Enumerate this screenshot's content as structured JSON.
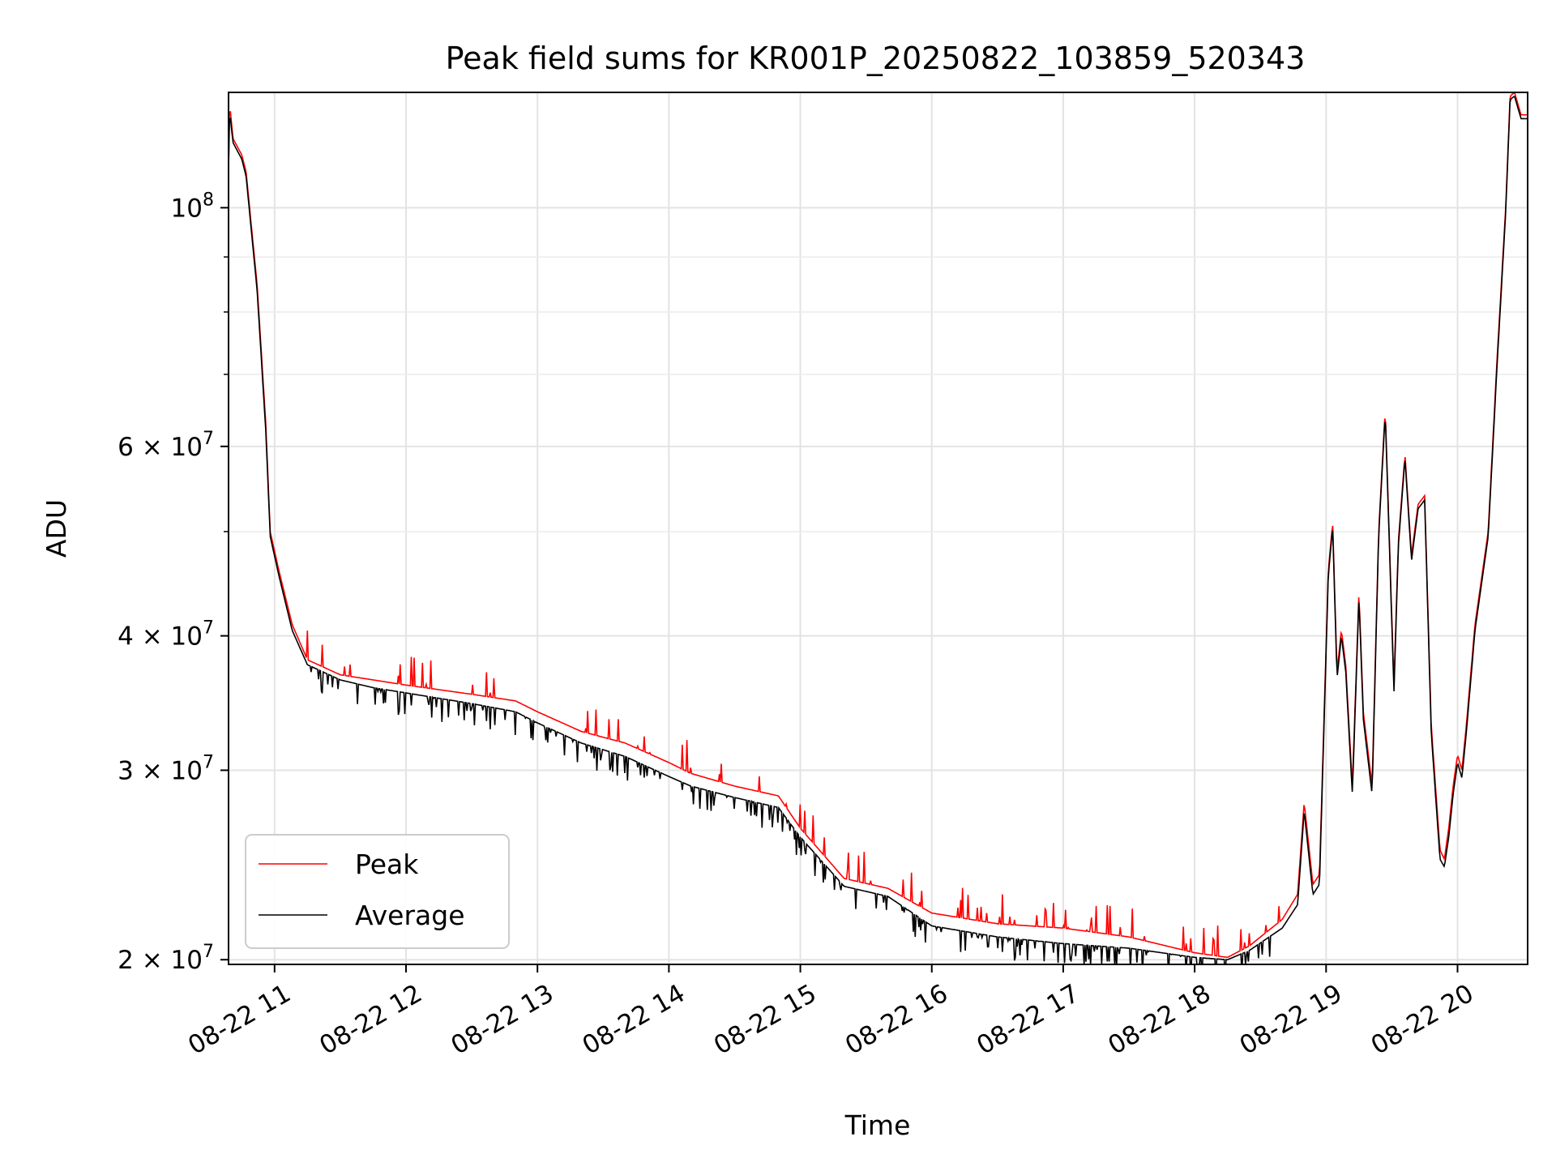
{
  "chart_data": {
    "type": "line",
    "title": "Peak field sums for KR001P_20250822_103859_520343",
    "xlabel": "Time",
    "ylabel": "ADU",
    "yscale": "log",
    "grid": true,
    "legend_position": "lower-left",
    "xlim": [
      "2025-08-22 10:38:59",
      "2025-08-22 20:32:00"
    ],
    "ylim": [
      19800000,
      128000000
    ],
    "x_ticks": [
      {
        "t": "2025-08-22 11:00",
        "label": "08-22 11"
      },
      {
        "t": "2025-08-22 12:00",
        "label": "08-22 12"
      },
      {
        "t": "2025-08-22 13:00",
        "label": "08-22 13"
      },
      {
        "t": "2025-08-22 14:00",
        "label": "08-22 14"
      },
      {
        "t": "2025-08-22 15:00",
        "label": "08-22 15"
      },
      {
        "t": "2025-08-22 16:00",
        "label": "08-22 16"
      },
      {
        "t": "2025-08-22 17:00",
        "label": "08-22 17"
      },
      {
        "t": "2025-08-22 18:00",
        "label": "08-22 18"
      },
      {
        "t": "2025-08-22 19:00",
        "label": "08-22 19"
      },
      {
        "t": "2025-08-22 20:00",
        "label": "08-22 20"
      }
    ],
    "y_major_ticks": [
      {
        "value": 20000000,
        "mantissa": "2",
        "exp": "7"
      },
      {
        "value": 30000000,
        "mantissa": "3",
        "exp": "7"
      },
      {
        "value": 40000000,
        "mantissa": "4",
        "exp": "7"
      },
      {
        "value": 60000000,
        "mantissa": "6",
        "exp": "7"
      },
      {
        "value": 100000000,
        "mantissa": "",
        "exp": "8"
      }
    ],
    "y_minor_ticks": [
      50000000,
      70000000,
      80000000,
      90000000
    ],
    "series": [
      {
        "name": "Peak",
        "color": "#ff0000",
        "x": [
          "2025-08-22 10:38:59",
          "2025-08-22 10:39:30",
          "2025-08-22 10:41:00",
          "2025-08-22 10:45:00",
          "2025-08-22 10:47:00",
          "2025-08-22 10:52:00",
          "2025-08-22 10:56:00",
          "2025-08-22 10:58:00",
          "2025-08-22 11:02:00",
          "2025-08-22 11:08:00",
          "2025-08-22 11:15:00",
          "2025-08-22 11:30:00",
          "2025-08-22 11:45:00",
          "2025-08-22 12:00:00",
          "2025-08-22 12:30:00",
          "2025-08-22 12:50:00",
          "2025-08-22 13:00:00",
          "2025-08-22 13:20:00",
          "2025-08-22 13:40:00",
          "2025-08-22 14:00:00",
          "2025-08-22 14:10:00",
          "2025-08-22 14:30:00",
          "2025-08-22 14:50:00",
          "2025-08-22 15:00:00",
          "2025-08-22 15:20:00",
          "2025-08-22 15:40:00",
          "2025-08-22 16:00:00",
          "2025-08-22 16:30:00",
          "2025-08-22 17:00:00",
          "2025-08-22 17:30:00",
          "2025-08-22 18:00:00",
          "2025-08-22 18:15:00",
          "2025-08-22 18:25:00",
          "2025-08-22 18:40:00",
          "2025-08-22 18:47:00",
          "2025-08-22 18:50:00",
          "2025-08-22 18:54:00",
          "2025-08-22 18:57:00",
          "2025-08-22 19:01:00",
          "2025-08-22 19:03:00",
          "2025-08-22 19:05:00",
          "2025-08-22 19:07:00",
          "2025-08-22 19:09:00",
          "2025-08-22 19:12:00",
          "2025-08-22 19:15:00",
          "2025-08-22 19:17:00",
          "2025-08-22 19:21:00",
          "2025-08-22 19:24:00",
          "2025-08-22 19:27:00",
          "2025-08-22 19:31:00",
          "2025-08-22 19:33:00",
          "2025-08-22 19:36:00",
          "2025-08-22 19:39:00",
          "2025-08-22 19:42:00",
          "2025-08-22 19:45:00",
          "2025-08-22 19:48:00",
          "2025-08-22 19:52:00",
          "2025-08-22 19:54:00",
          "2025-08-22 19:56:00",
          "2025-08-22 19:58:00",
          "2025-08-22 20:00:00",
          "2025-08-22 20:02:00",
          "2025-08-22 20:04:00",
          "2025-08-22 20:08:00",
          "2025-08-22 20:14:00",
          "2025-08-22 20:18:00",
          "2025-08-22 20:22:00",
          "2025-08-22 20:24:00",
          "2025-08-22 20:26:00",
          "2025-08-22 20:29:00",
          "2025-08-22 20:32:00"
        ],
        "y": [
          110000000,
          125000000,
          116000000,
          112000000,
          108000000,
          85000000,
          63000000,
          50000000,
          46000000,
          41000000,
          38000000,
          36800000,
          36400000,
          36000000,
          35300000,
          34800000,
          34000000,
          32600000,
          31800000,
          30500000,
          29800000,
          29000000,
          28400000,
          26500000,
          23800000,
          23300000,
          22100000,
          21600000,
          21400000,
          21000000,
          20300000,
          20100000,
          20600000,
          21800000,
          23000000,
          28000000,
          23500000,
          24000000,
          46000000,
          51000000,
          37000000,
          40500000,
          37500000,
          29000000,
          44000000,
          34000000,
          29000000,
          50000000,
          65000000,
          36000000,
          49000000,
          59000000,
          47500000,
          53000000,
          54000000,
          33000000,
          25300000,
          24800000,
          26500000,
          29000000,
          31000000,
          30000000,
          33000000,
          41000000,
          50000000,
          72000000,
          100000000,
          127000000,
          128000000,
          122000000,
          122000000
        ]
      },
      {
        "name": "Average",
        "color": "#000000",
        "x": [
          "2025-08-22 10:38:59",
          "2025-08-22 10:39:30",
          "2025-08-22 10:41:00",
          "2025-08-22 10:45:00",
          "2025-08-22 10:47:00",
          "2025-08-22 10:52:00",
          "2025-08-22 10:56:00",
          "2025-08-22 10:58:00",
          "2025-08-22 11:02:00",
          "2025-08-22 11:08:00",
          "2025-08-22 11:15:00",
          "2025-08-22 11:30:00",
          "2025-08-22 11:45:00",
          "2025-08-22 12:00:00",
          "2025-08-22 12:30:00",
          "2025-08-22 12:50:00",
          "2025-08-22 13:00:00",
          "2025-08-22 13:20:00",
          "2025-08-22 13:40:00",
          "2025-08-22 14:00:00",
          "2025-08-22 14:10:00",
          "2025-08-22 14:30:00",
          "2025-08-22 14:50:00",
          "2025-08-22 15:00:00",
          "2025-08-22 15:20:00",
          "2025-08-22 15:40:00",
          "2025-08-22 16:00:00",
          "2025-08-22 16:30:00",
          "2025-08-22 17:00:00",
          "2025-08-22 17:30:00",
          "2025-08-22 18:00:00",
          "2025-08-22 18:15:00",
          "2025-08-22 18:25:00",
          "2025-08-22 18:40:00",
          "2025-08-22 18:47:00",
          "2025-08-22 18:50:00",
          "2025-08-22 18:54:00",
          "2025-08-22 18:57:00",
          "2025-08-22 19:01:00",
          "2025-08-22 19:03:00",
          "2025-08-22 19:05:00",
          "2025-08-22 19:07:00",
          "2025-08-22 19:09:00",
          "2025-08-22 19:12:00",
          "2025-08-22 19:15:00",
          "2025-08-22 19:17:00",
          "2025-08-22 19:21:00",
          "2025-08-22 19:24:00",
          "2025-08-22 19:27:00",
          "2025-08-22 19:31:00",
          "2025-08-22 19:33:00",
          "2025-08-22 19:36:00",
          "2025-08-22 19:39:00",
          "2025-08-22 19:42:00",
          "2025-08-22 19:45:00",
          "2025-08-22 19:48:00",
          "2025-08-22 19:52:00",
          "2025-08-22 19:54:00",
          "2025-08-22 19:56:00",
          "2025-08-22 19:58:00",
          "2025-08-22 20:00:00",
          "2025-08-22 20:02:00",
          "2025-08-22 20:04:00",
          "2025-08-22 20:08:00",
          "2025-08-22 20:14:00",
          "2025-08-22 20:18:00",
          "2025-08-22 20:22:00",
          "2025-08-22 20:24:00",
          "2025-08-22 20:26:00",
          "2025-08-22 20:29:00",
          "2025-08-22 20:32:00"
        ],
        "y": [
          108000000,
          123000000,
          115000000,
          111000000,
          107000000,
          84000000,
          62000000,
          49500000,
          45500000,
          40500000,
          37600000,
          36400000,
          35800000,
          35400000,
          34600000,
          34000000,
          33200000,
          31800000,
          30900000,
          29600000,
          29000000,
          28300000,
          27700000,
          26000000,
          23400000,
          22900000,
          21500000,
          21000000,
          20700000,
          20500000,
          20100000,
          20000000,
          20400000,
          21400000,
          22500000,
          27500000,
          23000000,
          23500000,
          45500000,
          50500000,
          36500000,
          40000000,
          37000000,
          28500000,
          43500000,
          33500000,
          28500000,
          49500000,
          64500000,
          35500000,
          48500000,
          58500000,
          47000000,
          52500000,
          53500000,
          32500000,
          24800000,
          24400000,
          26000000,
          28500000,
          30500000,
          29500000,
          32500000,
          40500000,
          49500000,
          71000000,
          99000000,
          126000000,
          127000000,
          121000000,
          121000000
        ]
      }
    ]
  }
}
